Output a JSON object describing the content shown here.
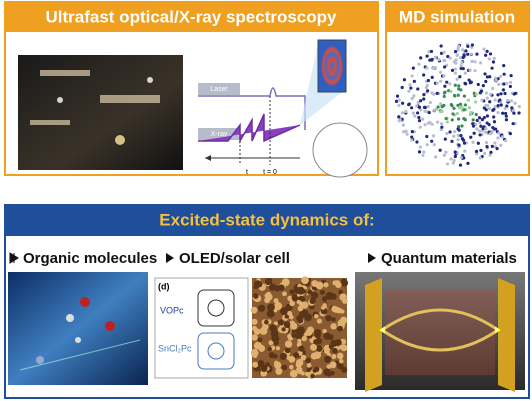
{
  "panels": {
    "spectroscopy": {
      "title": "Ultrafast optical/X-ray spectroscopy",
      "diagram": {
        "laser": "Laser",
        "xray": "X-ray",
        "t": "t",
        "t0": "t = 0"
      }
    },
    "md": {
      "title": "MD simulation"
    },
    "dynamics": {
      "title": "Excited-state dynamics of:",
      "items": [
        {
          "label": "Organic molecules"
        },
        {
          "label": "OLED/solar cell",
          "panel": "(d)",
          "molecules": [
            "VOPc",
            "SnCl₂Pc"
          ]
        },
        {
          "label": "Quantum materials"
        }
      ]
    }
  }
}
